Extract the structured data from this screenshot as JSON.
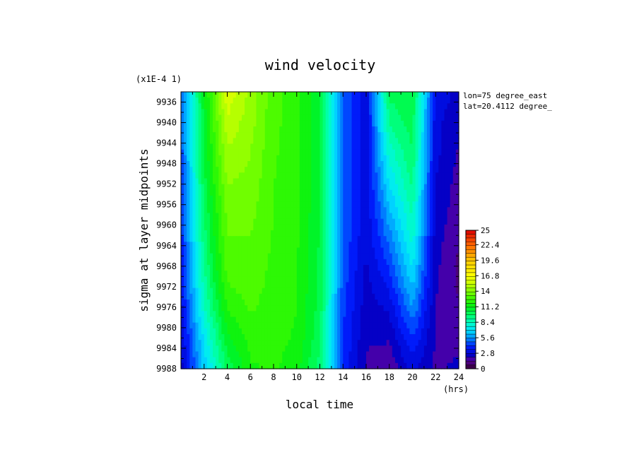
{
  "chart_data": {
    "type": "heatmap",
    "title": "wind velocity",
    "scale_note": "(x1E-4 1)",
    "xlabel": "local time",
    "xunit": "(hrs)",
    "ylabel": "sigma at layer midpoints",
    "xlim": [
      0,
      24
    ],
    "ylim": [
      9988,
      9934
    ],
    "x_ticks": [
      "2",
      "4",
      "6",
      "8",
      "10",
      "12",
      "14",
      "16",
      "18",
      "20",
      "22",
      "24"
    ],
    "y_ticks": [
      "9936",
      "9940",
      "9944",
      "9948",
      "9952",
      "9956",
      "9960",
      "9964",
      "9968",
      "9972",
      "9976",
      "9980",
      "9984",
      "9988"
    ],
    "annotations": [
      "lon=75 degree_east",
      "lat=20.4112 degree_"
    ],
    "colorbar": {
      "min": 0,
      "max": 25,
      "tick_labels": [
        "25",
        "22.4",
        "19.6",
        "16.8",
        "14",
        "11.2",
        "8.4",
        "5.6",
        "2.8",
        "0"
      ]
    },
    "grid_x": [
      0,
      2,
      4,
      6,
      8,
      10,
      12,
      14,
      16,
      18,
      20,
      22,
      24
    ],
    "grid_y": [
      9934,
      9940,
      9946,
      9952,
      9958,
      9964,
      9970,
      9976,
      9982,
      9988
    ],
    "values": [
      [
        5.0,
        11.0,
        16.0,
        14.5,
        12.8,
        12.2,
        10.5,
        5.0,
        3.0,
        10.0,
        10.5,
        3.5,
        2.5
      ],
      [
        4.8,
        10.8,
        15.2,
        14.3,
        12.8,
        12.2,
        10.5,
        5.0,
        3.0,
        9.2,
        10.2,
        3.0,
        2.2
      ],
      [
        4.5,
        10.5,
        14.6,
        14.0,
        12.7,
        12.2,
        10.5,
        5.0,
        3.0,
        8.0,
        9.8,
        3.0,
        2.0
      ],
      [
        4.3,
        10.2,
        14.0,
        13.8,
        12.6,
        12.2,
        10.5,
        5.0,
        3.0,
        7.0,
        9.2,
        2.8,
        1.8
      ],
      [
        4.0,
        9.8,
        13.5,
        13.5,
        12.6,
        12.1,
        10.5,
        5.0,
        3.0,
        6.0,
        8.5,
        2.6,
        1.6
      ],
      [
        3.8,
        9.4,
        13.2,
        13.2,
        12.5,
        12.0,
        10.4,
        4.8,
        2.8,
        5.0,
        7.8,
        2.4,
        1.4
      ],
      [
        3.5,
        8.9,
        12.8,
        13.0,
        12.4,
        12.0,
        10.3,
        4.6,
        2.6,
        4.0,
        6.8,
        2.2,
        1.2
      ],
      [
        3.2,
        8.2,
        12.0,
        12.7,
        12.3,
        11.9,
        10.2,
        4.4,
        2.4,
        3.0,
        5.6,
        2.1,
        1.5
      ],
      [
        2.8,
        7.2,
        11.0,
        12.2,
        12.2,
        11.8,
        10.0,
        4.2,
        2.2,
        2.2,
        4.2,
        2.0,
        2.0
      ],
      [
        2.5,
        6.5,
        10.0,
        11.8,
        12.0,
        11.5,
        9.5,
        4.0,
        2.0,
        1.5,
        3.0,
        2.0,
        2.2
      ]
    ]
  }
}
